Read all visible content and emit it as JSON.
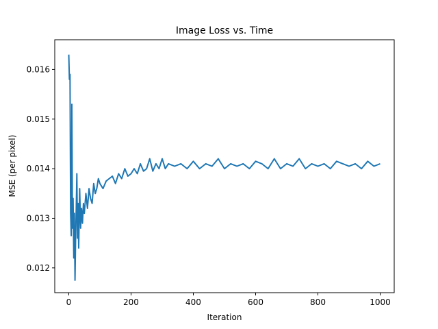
{
  "chart_data": {
    "type": "line",
    "title": "Image Loss vs. Time",
    "xlabel": "Iteration",
    "ylabel": "MSE (per pixel)",
    "xlim": [
      -45,
      1045
    ],
    "ylim": [
      0.0115,
      0.0166
    ],
    "x_ticks": [
      0,
      200,
      400,
      600,
      800,
      1000
    ],
    "y_ticks": [
      0.012,
      0.013,
      0.014,
      0.015,
      0.016
    ],
    "x_tick_labels": [
      "0",
      "200",
      "400",
      "600",
      "800",
      "1000"
    ],
    "y_tick_labels": [
      "0.012",
      "0.013",
      "0.014",
      "0.015",
      "0.016"
    ],
    "grid": false,
    "series": [
      {
        "color": "#1f77b4",
        "x": [
          0,
          2,
          4,
          6,
          8,
          10,
          12,
          14,
          16,
          18,
          20,
          22,
          24,
          26,
          28,
          30,
          32,
          35,
          38,
          41,
          44,
          47,
          50,
          55,
          60,
          65,
          70,
          75,
          80,
          85,
          90,
          95,
          100,
          110,
          120,
          130,
          140,
          150,
          160,
          170,
          180,
          190,
          200,
          210,
          220,
          230,
          240,
          250,
          260,
          270,
          280,
          290,
          300,
          310,
          320,
          340,
          360,
          380,
          400,
          420,
          440,
          460,
          480,
          500,
          520,
          540,
          560,
          580,
          600,
          620,
          640,
          660,
          680,
          700,
          720,
          740,
          760,
          780,
          800,
          820,
          840,
          860,
          880,
          900,
          920,
          940,
          960,
          980,
          1000
        ],
        "y": [
          0.0163,
          0.0158,
          0.0159,
          0.0131,
          0.01265,
          0.0153,
          0.0128,
          0.0134,
          0.0122,
          0.0131,
          0.01175,
          0.0126,
          0.0132,
          0.0139,
          0.0126,
          0.0133,
          0.0124,
          0.0136,
          0.0128,
          0.0132,
          0.0129,
          0.0133,
          0.0131,
          0.0135,
          0.0132,
          0.0136,
          0.0134,
          0.0133,
          0.0137,
          0.0135,
          0.0136,
          0.0138,
          0.0137,
          0.0136,
          0.01375,
          0.0138,
          0.01385,
          0.0137,
          0.0139,
          0.0138,
          0.014,
          0.01385,
          0.0139,
          0.014,
          0.0139,
          0.0141,
          0.01395,
          0.014,
          0.0142,
          0.01395,
          0.0141,
          0.014,
          0.0142,
          0.014,
          0.0141,
          0.01405,
          0.0141,
          0.014,
          0.01415,
          0.014,
          0.0141,
          0.01405,
          0.0142,
          0.014,
          0.0141,
          0.01405,
          0.0141,
          0.014,
          0.01415,
          0.0141,
          0.014,
          0.0142,
          0.014,
          0.0141,
          0.01405,
          0.0142,
          0.014,
          0.0141,
          0.01405,
          0.0141,
          0.014,
          0.01415,
          0.0141,
          0.01405,
          0.0141,
          0.014,
          0.01415,
          0.01405,
          0.0141
        ]
      }
    ]
  }
}
